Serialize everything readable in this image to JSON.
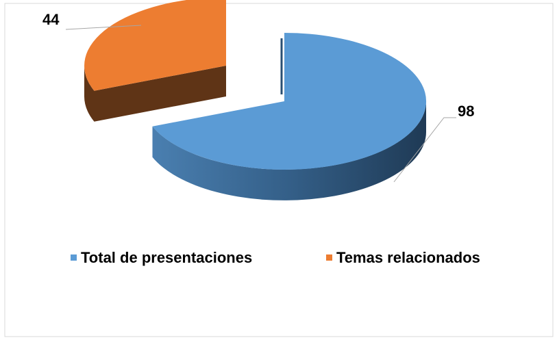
{
  "chart_data": {
    "type": "pie",
    "categories": [
      "Total de presentaciones",
      "Temas relacionados"
    ],
    "values": [
      98,
      44
    ],
    "colors": [
      "#5b9bd5",
      "#ed7d31"
    ],
    "legend": "bottom"
  }
}
